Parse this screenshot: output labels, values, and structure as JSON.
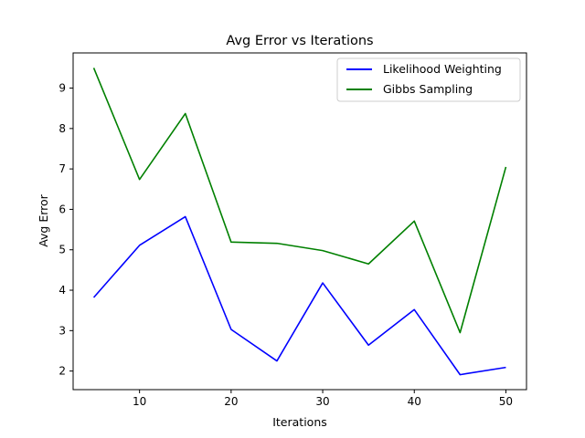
{
  "chart_data": {
    "type": "line",
    "title": "Avg Error vs Iterations",
    "xlabel": "Iterations",
    "ylabel": "Avg Error",
    "x": [
      5,
      10,
      15,
      20,
      25,
      30,
      35,
      40,
      45,
      50
    ],
    "series": [
      {
        "name": "Likelihood Weighting",
        "color": "#0000ff",
        "values": [
          3.82,
          5.11,
          5.82,
          3.03,
          2.25,
          4.18,
          2.64,
          3.52,
          1.91,
          2.09
        ]
      },
      {
        "name": "Gibbs Sampling",
        "color": "#008000",
        "values": [
          9.5,
          6.74,
          8.37,
          5.19,
          5.16,
          4.98,
          4.65,
          5.71,
          2.95,
          7.05
        ]
      }
    ],
    "xlim": [
      2.75,
      52.25
    ],
    "ylim": [
      1.54,
      9.87
    ],
    "xticks": [
      10,
      20,
      30,
      40,
      50
    ],
    "yticks": [
      2,
      3,
      4,
      5,
      6,
      7,
      8,
      9
    ],
    "legend_position": "top-right",
    "grid": false
  }
}
